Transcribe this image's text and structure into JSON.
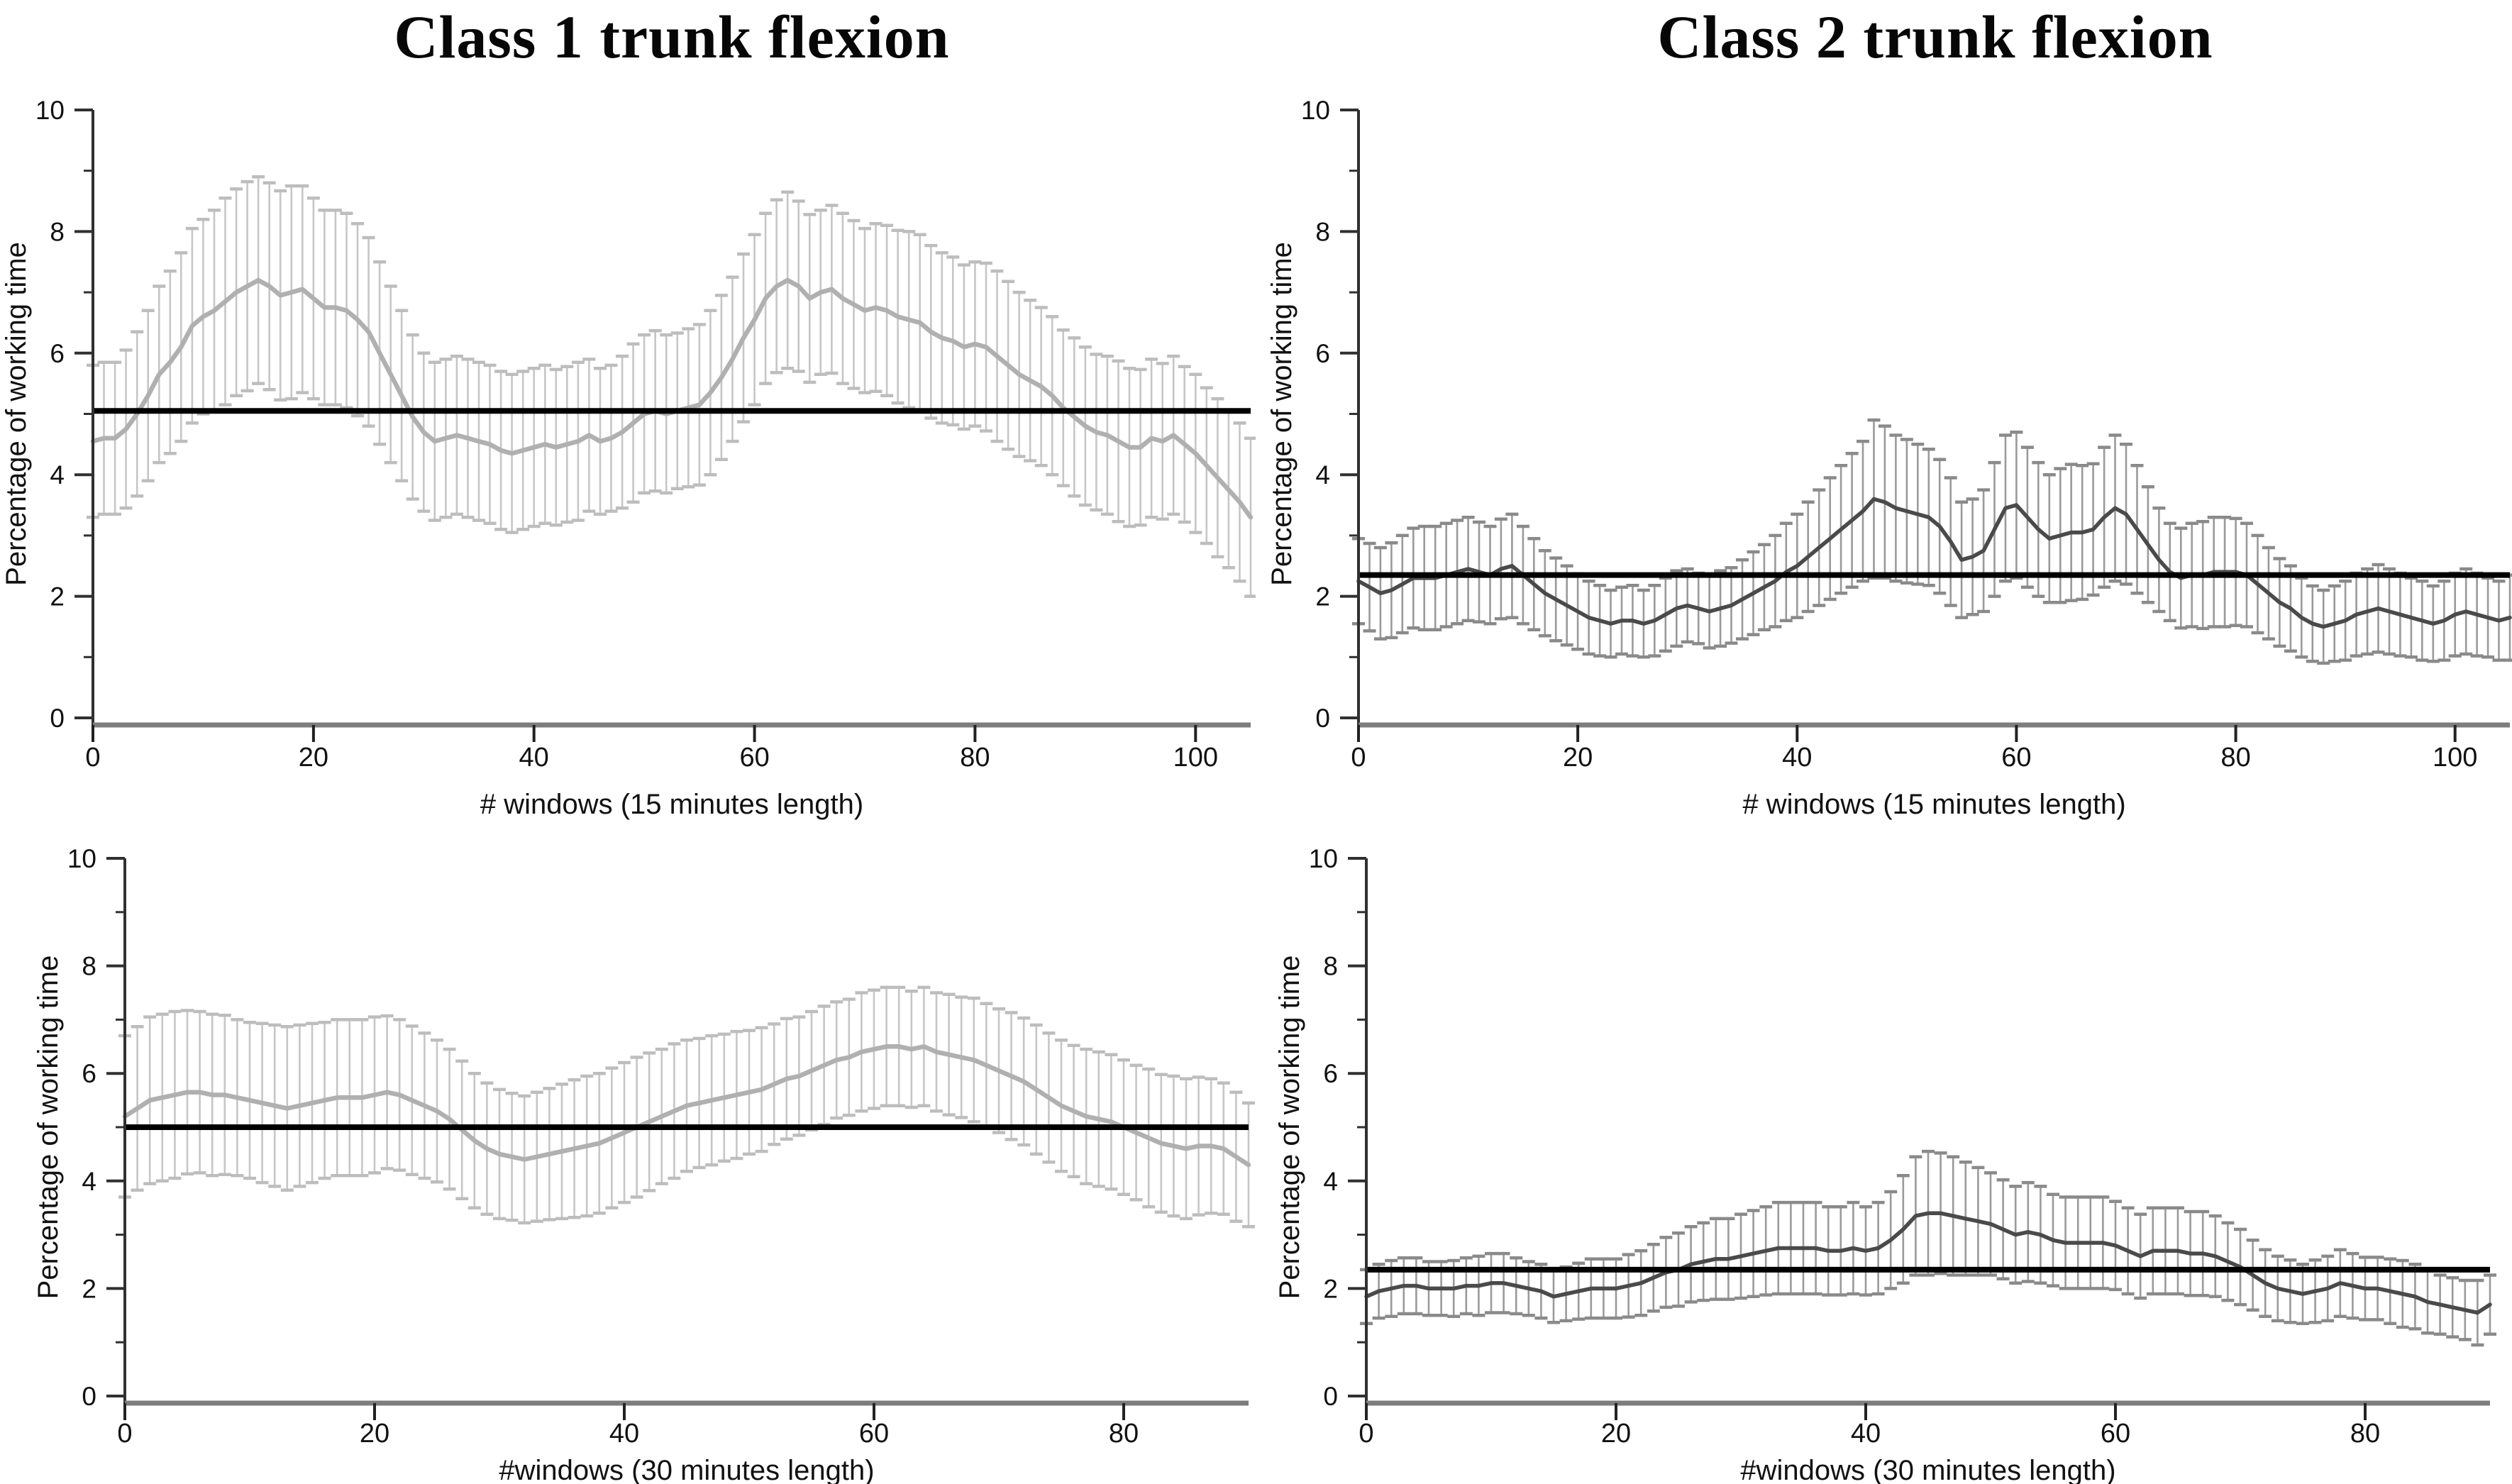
{
  "page": {
    "background": "#ffffff",
    "description_titles": [
      "Class 1 trunk flexion",
      "Class 2 trunk flexion"
    ]
  },
  "chart_data": [
    {
      "id": "class1-trunk-flexion-15min",
      "type": "line",
      "title": "Class 1 trunk flexion",
      "xlabel": "# windows (15 minutes length)",
      "ylabel": "Percentage of working time",
      "ylim": [
        0,
        10
      ],
      "yticks": [
        0,
        2,
        4,
        6,
        8,
        10
      ],
      "yticks_minor": [
        1,
        3,
        5,
        7,
        9
      ],
      "xticks": [
        0,
        20,
        40,
        60,
        80,
        100
      ],
      "xmax": 105,
      "grid": "off",
      "legend": "none",
      "reference_line": 5.05,
      "reference_color": "#000000",
      "line_color": "#b0b0b0",
      "errorbar_color": "#c6c6c6",
      "errorcap_color": "#bdbdbd",
      "mean": [
        4.55,
        4.6,
        4.6,
        4.75,
        5.0,
        5.3,
        5.65,
        5.85,
        6.1,
        6.45,
        6.6,
        6.7,
        6.85,
        7.0,
        7.1,
        7.2,
        7.1,
        6.95,
        7.0,
        7.05,
        6.9,
        6.75,
        6.75,
        6.7,
        6.55,
        6.35,
        6.0,
        5.65,
        5.3,
        4.95,
        4.7,
        4.55,
        4.6,
        4.65,
        4.6,
        4.55,
        4.5,
        4.4,
        4.35,
        4.4,
        4.45,
        4.5,
        4.45,
        4.5,
        4.55,
        4.65,
        4.55,
        4.6,
        4.7,
        4.85,
        5.0,
        5.05,
        5.0,
        5.05,
        5.1,
        5.15,
        5.35,
        5.6,
        5.9,
        6.25,
        6.55,
        6.9,
        7.1,
        7.2,
        7.1,
        6.9,
        7.0,
        7.05,
        6.9,
        6.8,
        6.7,
        6.75,
        6.7,
        6.6,
        6.55,
        6.5,
        6.35,
        6.25,
        6.2,
        6.1,
        6.15,
        6.1,
        5.95,
        5.8,
        5.65,
        5.55,
        5.45,
        5.3,
        5.1,
        4.95,
        4.8,
        4.7,
        4.65,
        4.55,
        4.45,
        4.45,
        4.6,
        4.55,
        4.65,
        4.5,
        4.35,
        4.15,
        3.95,
        3.75,
        3.55,
        3.3
      ],
      "err": [
        1.25,
        1.25,
        1.25,
        1.3,
        1.35,
        1.4,
        1.45,
        1.5,
        1.55,
        1.6,
        1.6,
        1.65,
        1.7,
        1.7,
        1.72,
        1.7,
        1.7,
        1.72,
        1.75,
        1.7,
        1.65,
        1.6,
        1.6,
        1.6,
        1.58,
        1.55,
        1.5,
        1.45,
        1.4,
        1.35,
        1.3,
        1.3,
        1.3,
        1.3,
        1.3,
        1.3,
        1.3,
        1.3,
        1.3,
        1.3,
        1.3,
        1.3,
        1.28,
        1.28,
        1.3,
        1.25,
        1.2,
        1.2,
        1.25,
        1.3,
        1.3,
        1.32,
        1.3,
        1.28,
        1.3,
        1.32,
        1.35,
        1.35,
        1.35,
        1.38,
        1.4,
        1.4,
        1.42,
        1.45,
        1.4,
        1.38,
        1.35,
        1.38,
        1.4,
        1.38,
        1.35,
        1.38,
        1.4,
        1.42,
        1.45,
        1.45,
        1.42,
        1.4,
        1.38,
        1.35,
        1.35,
        1.38,
        1.4,
        1.38,
        1.35,
        1.32,
        1.3,
        1.3,
        1.28,
        1.3,
        1.3,
        1.28,
        1.3,
        1.32,
        1.3,
        1.28,
        1.3,
        1.28,
        1.3,
        1.28,
        1.3,
        1.28,
        1.3,
        1.28,
        1.3,
        1.3
      ]
    },
    {
      "id": "class2-trunk-flexion-15min",
      "type": "line",
      "title": "Class 2 trunk flexion",
      "xlabel": "# windows (15 minutes length)",
      "ylabel": "Percentage of working time",
      "ylim": [
        0,
        10
      ],
      "yticks": [
        0,
        2,
        4,
        6,
        8,
        10
      ],
      "yticks_minor": [
        1,
        3,
        5,
        7,
        9
      ],
      "xticks": [
        0,
        20,
        40,
        60,
        80,
        100
      ],
      "xmax": 105,
      "grid": "off",
      "legend": "none",
      "reference_line": 2.35,
      "reference_color": "#000000",
      "line_color": "#4a4a4a",
      "errorbar_color": "#9a9a9a",
      "errorcap_color": "#8a8a8a",
      "mean": [
        2.25,
        2.15,
        2.05,
        2.1,
        2.2,
        2.3,
        2.3,
        2.3,
        2.35,
        2.4,
        2.45,
        2.4,
        2.35,
        2.45,
        2.5,
        2.35,
        2.2,
        2.05,
        1.95,
        1.85,
        1.75,
        1.65,
        1.6,
        1.55,
        1.6,
        1.6,
        1.55,
        1.6,
        1.7,
        1.8,
        1.85,
        1.8,
        1.75,
        1.8,
        1.85,
        1.95,
        2.05,
        2.15,
        2.25,
        2.4,
        2.5,
        2.65,
        2.8,
        2.95,
        3.1,
        3.25,
        3.4,
        3.6,
        3.55,
        3.45,
        3.4,
        3.35,
        3.3,
        3.15,
        2.9,
        2.6,
        2.65,
        2.75,
        3.1,
        3.45,
        3.5,
        3.3,
        3.1,
        2.95,
        3.0,
        3.05,
        3.05,
        3.1,
        3.3,
        3.45,
        3.35,
        3.1,
        2.85,
        2.6,
        2.4,
        2.3,
        2.35,
        2.35,
        2.4,
        2.4,
        2.4,
        2.35,
        2.2,
        2.05,
        1.9,
        1.8,
        1.65,
        1.55,
        1.5,
        1.55,
        1.6,
        1.7,
        1.75,
        1.8,
        1.75,
        1.7,
        1.65,
        1.6,
        1.55,
        1.6,
        1.7,
        1.75,
        1.7,
        1.65,
        1.6,
        1.65
      ],
      "err": [
        0.7,
        0.72,
        0.75,
        0.78,
        0.8,
        0.82,
        0.85,
        0.85,
        0.85,
        0.85,
        0.85,
        0.82,
        0.8,
        0.82,
        0.85,
        0.8,
        0.75,
        0.7,
        0.68,
        0.65,
        0.62,
        0.6,
        0.58,
        0.55,
        0.55,
        0.58,
        0.55,
        0.58,
        0.6,
        0.62,
        0.6,
        0.58,
        0.6,
        0.62,
        0.62,
        0.65,
        0.68,
        0.7,
        0.75,
        0.8,
        0.85,
        0.9,
        0.95,
        1.0,
        1.05,
        1.1,
        1.15,
        1.3,
        1.25,
        1.2,
        1.18,
        1.15,
        1.12,
        1.1,
        1.05,
        0.95,
        0.95,
        1.0,
        1.1,
        1.2,
        1.2,
        1.15,
        1.1,
        1.05,
        1.1,
        1.12,
        1.1,
        1.08,
        1.15,
        1.2,
        1.15,
        1.05,
        0.95,
        0.85,
        0.8,
        0.82,
        0.85,
        0.88,
        0.9,
        0.9,
        0.88,
        0.85,
        0.8,
        0.75,
        0.72,
        0.7,
        0.65,
        0.62,
        0.6,
        0.62,
        0.65,
        0.68,
        0.7,
        0.72,
        0.7,
        0.68,
        0.65,
        0.65,
        0.62,
        0.65,
        0.68,
        0.7,
        0.68,
        0.65,
        0.65,
        0.7
      ]
    },
    {
      "id": "class1-trunk-flexion-30min",
      "type": "line",
      "xlabel": "#windows (30 minutes length)",
      "ylabel": "Percentage of working time",
      "ylim": [
        0,
        10
      ],
      "yticks": [
        0,
        2,
        4,
        6,
        8,
        10
      ],
      "yticks_minor": [
        1,
        3,
        5,
        7,
        9
      ],
      "xticks": [
        0,
        20,
        40,
        60,
        80
      ],
      "xmax": 90,
      "grid": "off",
      "legend": "none",
      "reference_line": 5.0,
      "reference_color": "#000000",
      "line_color": "#b0b0b0",
      "errorbar_color": "#c6c6c6",
      "errorcap_color": "#bdbdbd",
      "mean": [
        5.2,
        5.35,
        5.5,
        5.55,
        5.6,
        5.65,
        5.65,
        5.6,
        5.6,
        5.55,
        5.5,
        5.45,
        5.4,
        5.35,
        5.4,
        5.45,
        5.5,
        5.55,
        5.55,
        5.55,
        5.6,
        5.65,
        5.6,
        5.5,
        5.4,
        5.3,
        5.15,
        4.95,
        4.75,
        4.6,
        4.5,
        4.45,
        4.4,
        4.45,
        4.5,
        4.55,
        4.6,
        4.65,
        4.7,
        4.8,
        4.9,
        5.0,
        5.1,
        5.2,
        5.3,
        5.4,
        5.45,
        5.5,
        5.55,
        5.6,
        5.65,
        5.7,
        5.8,
        5.9,
        5.95,
        6.05,
        6.15,
        6.25,
        6.3,
        6.4,
        6.45,
        6.5,
        6.5,
        6.45,
        6.5,
        6.4,
        6.35,
        6.3,
        6.25,
        6.15,
        6.05,
        5.95,
        5.85,
        5.7,
        5.55,
        5.4,
        5.3,
        5.2,
        5.15,
        5.1,
        5.0,
        4.9,
        4.8,
        4.7,
        4.65,
        4.6,
        4.65,
        4.65,
        4.6,
        4.45,
        4.3
      ],
      "err": [
        1.5,
        1.52,
        1.55,
        1.55,
        1.55,
        1.52,
        1.5,
        1.5,
        1.48,
        1.45,
        1.45,
        1.48,
        1.5,
        1.52,
        1.5,
        1.48,
        1.45,
        1.45,
        1.45,
        1.45,
        1.45,
        1.42,
        1.4,
        1.38,
        1.35,
        1.32,
        1.3,
        1.28,
        1.25,
        1.22,
        1.2,
        1.18,
        1.18,
        1.2,
        1.22,
        1.25,
        1.28,
        1.3,
        1.3,
        1.3,
        1.3,
        1.3,
        1.28,
        1.25,
        1.25,
        1.22,
        1.2,
        1.2,
        1.18,
        1.18,
        1.15,
        1.15,
        1.12,
        1.12,
        1.1,
        1.1,
        1.1,
        1.08,
        1.08,
        1.1,
        1.1,
        1.1,
        1.1,
        1.08,
        1.1,
        1.1,
        1.12,
        1.12,
        1.15,
        1.15,
        1.15,
        1.18,
        1.18,
        1.2,
        1.2,
        1.22,
        1.22,
        1.25,
        1.25,
        1.25,
        1.25,
        1.25,
        1.28,
        1.28,
        1.3,
        1.3,
        1.28,
        1.25,
        1.22,
        1.2,
        1.15
      ]
    },
    {
      "id": "class2-trunk-flexion-30min",
      "type": "line",
      "xlabel": "#windows (30 minutes length)",
      "ylabel": "Percentage of working time",
      "ylim": [
        0,
        10
      ],
      "yticks": [
        0,
        2,
        4,
        6,
        8,
        10
      ],
      "yticks_minor": [
        1,
        3,
        5,
        7,
        9
      ],
      "xticks": [
        0,
        20,
        40,
        60,
        80
      ],
      "xmax": 90,
      "grid": "off",
      "legend": "none",
      "reference_line": 2.35,
      "reference_color": "#000000",
      "line_color": "#4a4a4a",
      "errorbar_color": "#9a9a9a",
      "errorcap_color": "#8a8a8a",
      "mean": [
        1.85,
        1.95,
        2.0,
        2.05,
        2.05,
        2.0,
        2.0,
        2.0,
        2.05,
        2.05,
        2.1,
        2.1,
        2.05,
        2.0,
        1.95,
        1.85,
        1.9,
        1.95,
        2.0,
        2.0,
        2.0,
        2.05,
        2.1,
        2.2,
        2.3,
        2.35,
        2.45,
        2.5,
        2.55,
        2.55,
        2.6,
        2.65,
        2.7,
        2.75,
        2.75,
        2.75,
        2.75,
        2.7,
        2.7,
        2.75,
        2.7,
        2.75,
        2.9,
        3.1,
        3.35,
        3.4,
        3.4,
        3.35,
        3.3,
        3.25,
        3.2,
        3.1,
        3.0,
        3.05,
        3.0,
        2.9,
        2.85,
        2.85,
        2.85,
        2.85,
        2.8,
        2.7,
        2.6,
        2.7,
        2.7,
        2.7,
        2.65,
        2.65,
        2.6,
        2.5,
        2.4,
        2.25,
        2.1,
        2.0,
        1.95,
        1.9,
        1.95,
        2.0,
        2.1,
        2.05,
        2.0,
        2.0,
        1.95,
        1.9,
        1.85,
        1.75,
        1.7,
        1.65,
        1.6,
        1.55,
        1.7
      ],
      "err": [
        0.5,
        0.5,
        0.52,
        0.52,
        0.52,
        0.5,
        0.5,
        0.52,
        0.52,
        0.55,
        0.55,
        0.55,
        0.52,
        0.5,
        0.5,
        0.48,
        0.5,
        0.52,
        0.55,
        0.55,
        0.55,
        0.58,
        0.6,
        0.62,
        0.65,
        0.68,
        0.7,
        0.72,
        0.75,
        0.75,
        0.78,
        0.8,
        0.82,
        0.85,
        0.85,
        0.85,
        0.85,
        0.82,
        0.82,
        0.85,
        0.82,
        0.85,
        0.9,
        1.0,
        1.1,
        1.15,
        1.12,
        1.1,
        1.05,
        1.0,
        0.95,
        0.92,
        0.9,
        0.92,
        0.9,
        0.85,
        0.85,
        0.85,
        0.85,
        0.85,
        0.82,
        0.8,
        0.78,
        0.8,
        0.8,
        0.8,
        0.78,
        0.78,
        0.75,
        0.72,
        0.7,
        0.65,
        0.62,
        0.6,
        0.58,
        0.55,
        0.58,
        0.6,
        0.62,
        0.6,
        0.58,
        0.58,
        0.6,
        0.62,
        0.6,
        0.58,
        0.55,
        0.55,
        0.55,
        0.6,
        0.55
      ]
    }
  ]
}
